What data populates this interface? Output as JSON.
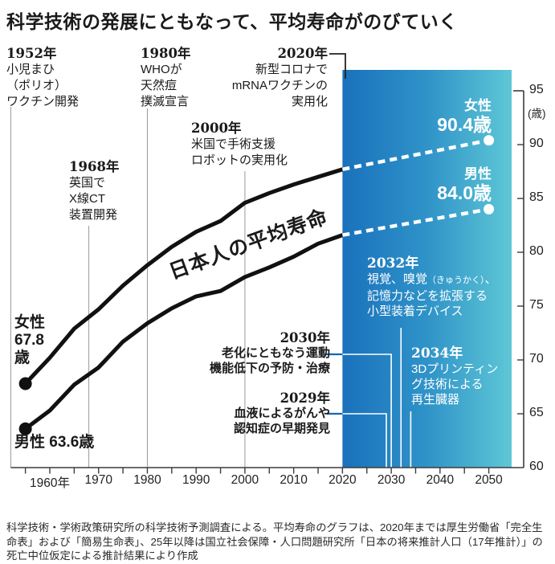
{
  "title": "科学技術の発展にともなって、平均寿命がのびていく",
  "annotations": {
    "a1952": {
      "year": "1952年",
      "lines": [
        "小児まひ",
        "（ポリオ）",
        "ワクチン開発"
      ]
    },
    "a1968": {
      "year": "1968年",
      "lines": [
        "英国で",
        "X線CT",
        "装置開発"
      ]
    },
    "a1980": {
      "year": "1980年",
      "lines": [
        "WHOが",
        "天然痘",
        "撲滅宣言"
      ]
    },
    "a2000": {
      "year": "2000年",
      "lines": [
        "米国で手術支援",
        "ロボットの実用化"
      ]
    },
    "a2020": {
      "year": "2020年",
      "lines": [
        "新型コロナで",
        "mRNAワクチンの",
        "実用化"
      ]
    },
    "a2029": {
      "year": "2029年",
      "lines": [
        "血液によるがんや",
        "認知症の早期発見"
      ]
    },
    "a2030": {
      "year": "2030年",
      "lines": [
        "老化にともなう運動",
        "機能低下の予防・治療"
      ]
    },
    "a2032": {
      "year": "2032年",
      "l1a": "視覚、嗅覚",
      "l1b": "（きゅうかく）",
      "l1c": "、",
      "l2": "記憶力などを拡張する",
      "l3": "小型装着デバイス"
    },
    "a2034": {
      "year": "2034年",
      "lines": [
        "3Dプリンティン",
        "グ技術による",
        "再生臓器"
      ]
    }
  },
  "labels": {
    "curve_label": "日本人の平均寿命",
    "women_start": {
      "l1": "女性",
      "l2": "67.8",
      "l3": "歳"
    },
    "men_start": "男性 63.6歳",
    "women_end": {
      "name": "女性",
      "value": "90.4歳"
    },
    "men_end": {
      "name": "男性",
      "value": "84.0歳"
    },
    "y_unit": "(歳)"
  },
  "footer": "科学技術・学術政策研究所の科学技術予測調査による。平均寿命のグラフは、2020年までは厚生労働省「完全生命表」および「簡易生命表」、25年以降は国立社会保障・人口問題研究所「日本の将来推計人口（17年推計）」の死亡中位仮定による推計結果により作成",
  "colors": {
    "projection_fill_start": "#1a71bc",
    "projection_fill_mid": "#2f93c8",
    "projection_fill_end": "#5ec7d6",
    "line": "#111111",
    "projection_line": "#ffffff",
    "near_future_text": "#1666b2",
    "axis": "#3c3c3c",
    "gridline": "#999999",
    "bracket": "#222222"
  },
  "chart_data": {
    "type": "line",
    "title": "日本人の平均寿命",
    "xlim": [
      1952,
      2054
    ],
    "ylim": [
      60,
      95
    ],
    "y_unit": "歳",
    "projection_start_year": 2020,
    "x_ticks": [
      {
        "year": 1960,
        "label": "1960年"
      },
      {
        "year": 1970,
        "label": "1970"
      },
      {
        "year": 1980,
        "label": "1980"
      },
      {
        "year": 1990,
        "label": "1990"
      },
      {
        "year": 2000,
        "label": "2000"
      },
      {
        "year": 2010,
        "label": "2010"
      },
      {
        "year": 2020,
        "label": "2020"
      },
      {
        "year": 2030,
        "label": "2030"
      },
      {
        "year": 2040,
        "label": "2040"
      },
      {
        "year": 2050,
        "label": "2050"
      }
    ],
    "y_ticks": [
      60,
      65,
      70,
      75,
      80,
      85,
      90,
      95
    ],
    "series": [
      {
        "name": "女性（実績）",
        "style": "solid-black",
        "x": [
          1955,
          1960,
          1965,
          1970,
          1975,
          1980,
          1985,
          1990,
          1995,
          2000,
          2005,
          2010,
          2015,
          2020
        ],
        "y": [
          67.8,
          70.2,
          72.9,
          74.7,
          76.9,
          78.8,
          80.5,
          81.9,
          82.9,
          84.6,
          85.5,
          86.3,
          87.0,
          87.7
        ]
      },
      {
        "name": "女性（推計）",
        "style": "dashed-white",
        "x": [
          2020,
          2050
        ],
        "y": [
          87.7,
          90.4
        ]
      },
      {
        "name": "男性（実績）",
        "style": "solid-black",
        "x": [
          1955,
          1960,
          1965,
          1970,
          1975,
          1980,
          1985,
          1990,
          1995,
          2000,
          2005,
          2010,
          2015,
          2020
        ],
        "y": [
          63.6,
          65.3,
          67.7,
          69.3,
          71.7,
          73.4,
          74.8,
          75.9,
          76.4,
          77.7,
          78.6,
          79.6,
          80.8,
          81.6
        ]
      },
      {
        "name": "男性（推計）",
        "style": "dashed-white",
        "x": [
          2020,
          2050
        ],
        "y": [
          81.6,
          84.0
        ]
      }
    ],
    "event_gridline_years": [
      1952,
      1968,
      1980,
      2000
    ],
    "future_event_years": [
      2029,
      2030,
      2032,
      2034
    ]
  }
}
